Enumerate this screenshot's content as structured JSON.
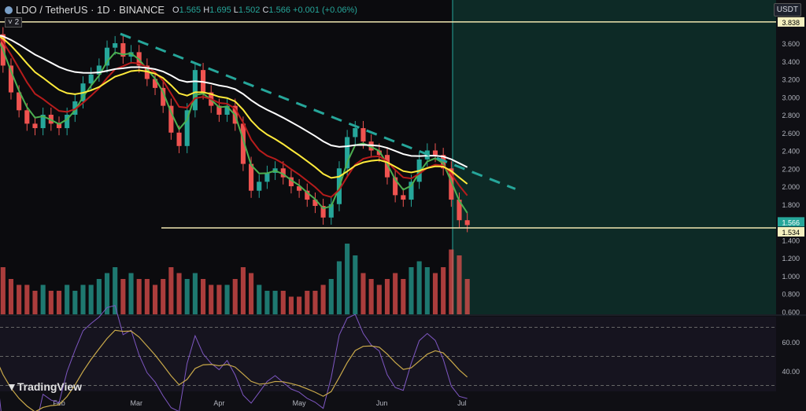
{
  "header": {
    "symbol": "LDO / TetherUS · 1D · BINANCE",
    "o_label": "O",
    "o": "1.565",
    "h_label": "H",
    "h": "1.695",
    "l_label": "L",
    "l": "1.502",
    "c_label": "C",
    "c": "1.566",
    "change": "+0.001 (+0.06%)",
    "collapse": "˅ 2"
  },
  "currency": "USDT",
  "brand": "TradingView",
  "chart_data": {
    "type": "candlestick",
    "price_axis": {
      "ticks": [
        "3.600",
        "3.400",
        "3.200",
        "3.000",
        "2.800",
        "2.600",
        "2.400",
        "2.200",
        "2.000",
        "1.800",
        "1.400",
        "1.200",
        "1.000",
        "0.800",
        "0.600"
      ],
      "range": [
        0.6,
        3.85
      ]
    },
    "rsi_axis": {
      "ticks": [
        "60.00",
        "40.00"
      ],
      "bands": [
        70,
        50,
        30
      ]
    },
    "time_axis": [
      "Feb",
      "Mar",
      "Apr",
      "May",
      "Jun",
      "Jul"
    ],
    "price_labels": {
      "last": "1.566",
      "support": "1.534",
      "resistance": "3.838"
    },
    "horizontal_lines": [
      3.838,
      1.534
    ],
    "trendline": {
      "from": [
        "2024-02-24",
        3.705
      ],
      "to": [
        "2024-07-21",
        1.97
      ],
      "style": "dashed",
      "color": "#26a69a"
    },
    "dates": [
      "2024-01-08",
      "2024-01-11",
      "2024-01-14",
      "2024-01-17",
      "2024-01-20",
      "2024-01-23",
      "2024-01-26",
      "2024-01-29",
      "2024-02-01",
      "2024-02-04",
      "2024-02-07",
      "2024-02-10",
      "2024-02-13",
      "2024-02-16",
      "2024-02-19",
      "2024-02-22",
      "2024-02-25",
      "2024-02-28",
      "2024-03-02",
      "2024-03-05",
      "2024-03-08",
      "2024-03-11",
      "2024-03-14",
      "2024-03-17",
      "2024-03-20",
      "2024-03-23",
      "2024-03-26",
      "2024-03-29",
      "2024-04-01",
      "2024-04-04",
      "2024-04-07",
      "2024-04-10",
      "2024-04-13",
      "2024-04-16",
      "2024-04-19",
      "2024-04-22",
      "2024-04-25",
      "2024-04-28",
      "2024-05-01",
      "2024-05-04",
      "2024-05-07",
      "2024-05-10",
      "2024-05-13",
      "2024-05-16",
      "2024-05-19",
      "2024-05-22",
      "2024-05-25",
      "2024-05-28",
      "2024-05-31",
      "2024-06-03",
      "2024-06-06",
      "2024-06-09",
      "2024-06-12",
      "2024-06-15",
      "2024-06-18",
      "2024-06-21",
      "2024-06-24",
      "2024-06-27",
      "2024-06-30",
      "2024-07-03"
    ],
    "close": [
      3.7,
      3.35,
      3.05,
      2.85,
      2.7,
      2.65,
      2.8,
      2.7,
      2.65,
      2.8,
      2.95,
      3.15,
      3.25,
      3.35,
      3.55,
      3.6,
      3.45,
      3.5,
      3.35,
      3.2,
      3.1,
      2.9,
      2.6,
      2.45,
      2.85,
      3.3,
      3.05,
      2.9,
      2.8,
      2.9,
      2.7,
      2.25,
      1.95,
      2.05,
      2.15,
      2.2,
      2.1,
      2.0,
      1.95,
      1.85,
      1.78,
      1.65,
      1.8,
      2.2,
      2.55,
      2.65,
      2.5,
      2.4,
      2.35,
      2.1,
      1.9,
      1.85,
      2.05,
      2.3,
      2.4,
      2.35,
      2.2,
      1.85,
      1.62,
      1.566
    ],
    "volume": [
      0.9,
      0.8,
      0.6,
      0.5,
      0.5,
      0.4,
      0.5,
      0.4,
      0.4,
      0.5,
      0.4,
      0.5,
      0.5,
      0.6,
      0.7,
      0.8,
      0.6,
      0.7,
      0.6,
      0.6,
      0.5,
      0.6,
      0.8,
      0.7,
      0.6,
      0.7,
      0.6,
      0.5,
      0.5,
      0.5,
      0.6,
      0.8,
      0.7,
      0.5,
      0.4,
      0.4,
      0.4,
      0.3,
      0.3,
      0.4,
      0.4,
      0.5,
      0.6,
      0.9,
      1.2,
      1.0,
      0.7,
      0.6,
      0.5,
      0.6,
      0.7,
      0.6,
      0.8,
      0.9,
      0.8,
      0.7,
      0.8,
      1.1,
      1.0,
      0.6
    ],
    "colors": {
      "up": "#26a69a",
      "down": "#ef5350",
      "ma_fast": "#4caf50",
      "ma_mid": "#b71c1c",
      "ma_slow": "#ffeb3b",
      "ma_long": "#ffffff",
      "rsi": "#7e57c2",
      "rsi_ma": "#c9a94a"
    }
  }
}
